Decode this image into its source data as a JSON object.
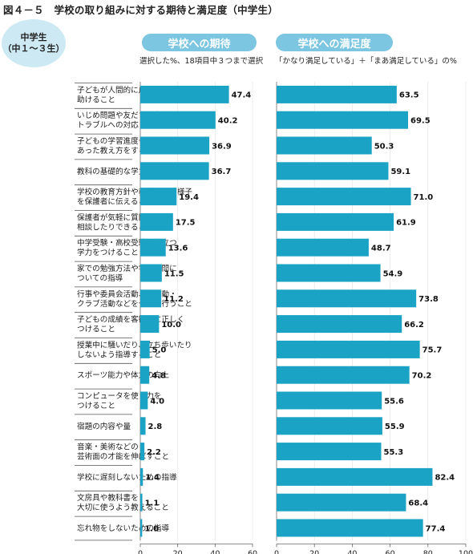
{
  "page": {
    "figure_title": "図４－５　学校の取り組みに対する期待と満足度（中学生）",
    "grade_label_line1": "中学生",
    "grade_label_line2": "（中１～３生）",
    "colors": {
      "bar": "#1aa3c5",
      "pill": "#7cc6e2",
      "badge": "#cdeaf4",
      "row_border": "#555555"
    }
  },
  "chart_data": [
    {
      "type": "bar",
      "orientation": "horizontal",
      "title": "学校への期待",
      "subtitle": "選択した%、18項目中３つまで選択",
      "xlim": [
        0,
        60
      ],
      "ticks": [
        0,
        20,
        40,
        60
      ],
      "unit": "(%)",
      "categories": [
        "子どもが人間的に成長するのを\n助けること",
        "いじめ問題や友だち同士の\nトラブルへの対応",
        "子どもの学習進度や興味・関心に\nあった教え方をすること",
        "教科の基礎的な学力をつけること",
        "学校の教育方針や教育活動の様子\nを保護者に伝えること",
        "保護者が気軽に質問したり\n相談したりできること",
        "中学受験・高校受験に役立つ\n学力をつけること",
        "家での勉強方法や学習時間に\nついての指導",
        "行事や委員会活動、部活動・\nクラブ活動などを十分に行うこと",
        "子どもの成績を客観的に正しく\nつけること",
        "授業中に騒いだり、立ち歩いたり\nしないよう指導すること",
        "スポーツ能力や体力の向上",
        "コンピュータを使う力を\nつけること",
        "宿題の内容や量",
        "音楽・美術などの\n芸術面の才能を伸ばすこと",
        "学校に遅刻しないための指導",
        "文房具や教科書を\n大切に使うよう教えること",
        "忘れ物をしないための指導"
      ],
      "values": [
        47.4,
        40.2,
        36.9,
        36.7,
        19.4,
        17.5,
        13.6,
        11.5,
        11.2,
        10.0,
        5.0,
        4.8,
        4.0,
        2.8,
        2.2,
        1.4,
        1.1,
        1.0
      ],
      "value_labels": [
        "47.4",
        "40.2",
        "36.9",
        "36.7",
        "19.4",
        "17.5",
        "13.6",
        "11.5",
        "11.2",
        "10.0",
        "5.0",
        "4.8",
        "4.0",
        "2.8",
        "2.2",
        "1.4",
        "1.1",
        "1.0"
      ]
    },
    {
      "type": "bar",
      "orientation": "horizontal",
      "title": "学校への満足度",
      "subtitle": "「かなり満足している」＋「まあ満足している」の%",
      "xlim": [
        0,
        100
      ],
      "ticks": [
        0,
        20,
        40,
        60,
        80,
        100
      ],
      "unit": "(%)",
      "values": [
        63.5,
        69.5,
        50.3,
        59.1,
        71.0,
        61.9,
        48.7,
        54.9,
        73.8,
        66.2,
        75.7,
        70.2,
        55.6,
        55.9,
        55.3,
        82.4,
        68.4,
        77.4
      ],
      "value_labels": [
        "63.5",
        "69.5",
        "50.3",
        "59.1",
        "71.0",
        "61.9",
        "48.7",
        "54.9",
        "73.8",
        "66.2",
        "75.7",
        "70.2",
        "55.6",
        "55.9",
        "55.3",
        "82.4",
        "68.4",
        "77.4"
      ]
    }
  ]
}
